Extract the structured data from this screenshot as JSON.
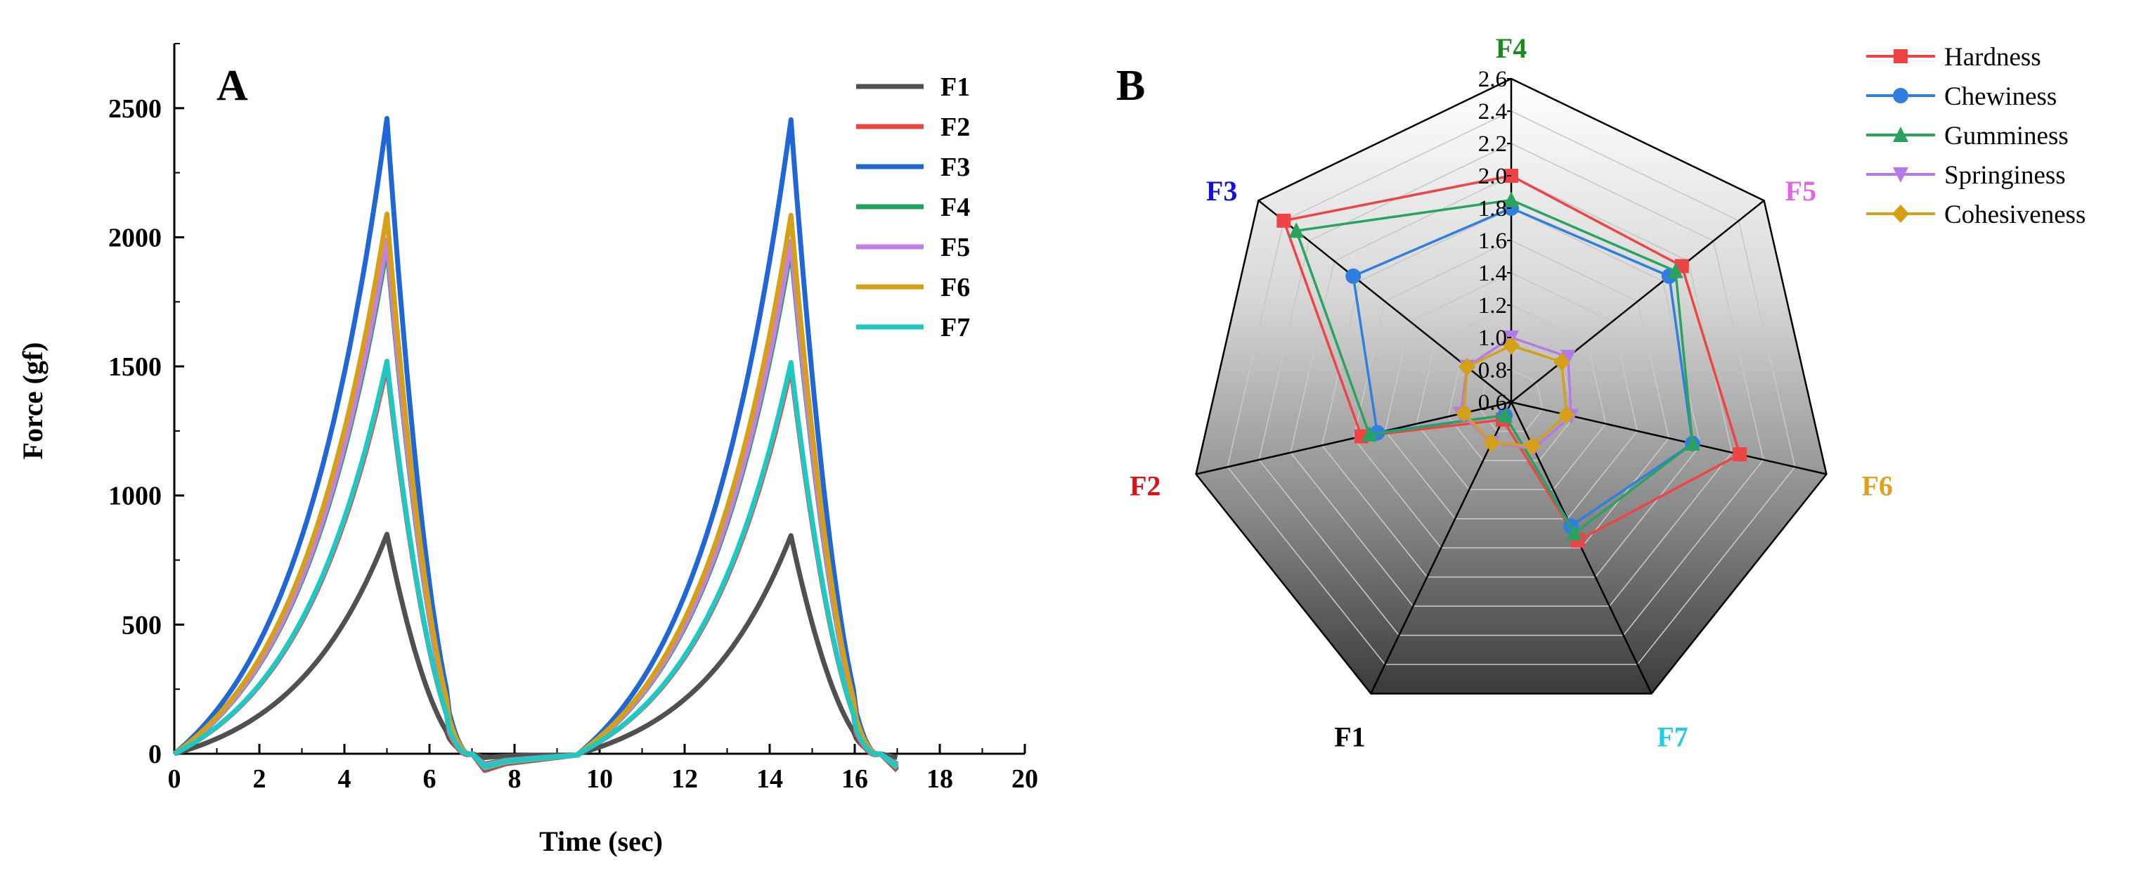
{
  "chart_data": [
    {
      "type": "line",
      "panel_label": "A",
      "title": "",
      "xlabel": "Time (sec)",
      "ylabel": "Force (gf)",
      "xlim": [
        0,
        20
      ],
      "ylim": [
        0,
        2750
      ],
      "xticks": [
        0,
        2,
        4,
        6,
        8,
        10,
        12,
        14,
        16,
        18,
        20
      ],
      "yticks": [
        0,
        500,
        1000,
        1500,
        2000,
        2500
      ],
      "grid": false,
      "legend_position": "top-right",
      "cycle": {
        "first_peak_x": 5.0,
        "second_start_x": 9.5,
        "second_peak_x": 14.5,
        "end_x": 17.0
      },
      "series": [
        {
          "name": "F1",
          "color": "#505050",
          "peak1": 850,
          "peak2": 845,
          "undershoot": -15
        },
        {
          "name": "F2",
          "color": "#ef4444",
          "peak1": 1500,
          "peak2": 1495,
          "undershoot": -65
        },
        {
          "name": "F3",
          "color": "#1f66d6",
          "peak1": 2460,
          "peak2": 2455,
          "undershoot": -60
        },
        {
          "name": "F4",
          "color": "#22a35a",
          "peak1": 1960,
          "peak2": 1955,
          "undershoot": -40
        },
        {
          "name": "F5",
          "color": "#c77de6",
          "peak1": 1990,
          "peak2": 1985,
          "undershoot": -45
        },
        {
          "name": "F6",
          "color": "#d4a017",
          "peak1": 2090,
          "peak2": 2085,
          "undershoot": -55
        },
        {
          "name": "F7",
          "color": "#1fc9c3",
          "peak1": 1520,
          "peak2": 1515,
          "undershoot": -50
        }
      ]
    },
    {
      "type": "radar",
      "panel_label": "B",
      "title": "",
      "axes": [
        {
          "name": "F4",
          "color": "#1a8a1a"
        },
        {
          "name": "F5",
          "color": "#e066e6"
        },
        {
          "name": "F6",
          "color": "#e0a020"
        },
        {
          "name": "F7",
          "color": "#20d0e0"
        },
        {
          "name": "F1",
          "color": "#000000"
        },
        {
          "name": "F2",
          "color": "#e01010"
        },
        {
          "name": "F3",
          "color": "#1010e0"
        }
      ],
      "rlim": [
        0.6,
        2.6
      ],
      "rticks": [
        "0.6",
        "0.8",
        "1.0",
        "1.2",
        "1.4",
        "1.6",
        "1.8",
        "2.0",
        "2.2",
        "2.4",
        "2.6"
      ],
      "legend_position": "top-right",
      "series": [
        {
          "name": "Hardness",
          "color": "#ef4444",
          "marker": "square",
          "values": [
            2.0,
            1.95,
            2.05,
            1.55,
            0.72,
            1.55,
            2.4
          ]
        },
        {
          "name": "Chewiness",
          "color": "#2f7fdf",
          "marker": "circle",
          "values": [
            1.8,
            1.85,
            1.75,
            1.45,
            0.69,
            1.45,
            1.85
          ]
        },
        {
          "name": "Gumminess",
          "color": "#2aa35e",
          "marker": "triangle-up",
          "values": [
            1.85,
            1.9,
            1.75,
            1.5,
            0.69,
            1.5,
            2.3
          ]
        },
        {
          "name": "Springiness",
          "color": "#b57ae6",
          "marker": "triangle-down",
          "values": [
            1.0,
            1.05,
            0.98,
            0.92,
            0.88,
            0.92,
            0.95
          ]
        },
        {
          "name": "Cohesiveness",
          "color": "#d4a017",
          "marker": "diamond",
          "values": [
            0.95,
            1.0,
            0.95,
            0.9,
            0.88,
            0.9,
            0.95
          ]
        }
      ]
    }
  ]
}
